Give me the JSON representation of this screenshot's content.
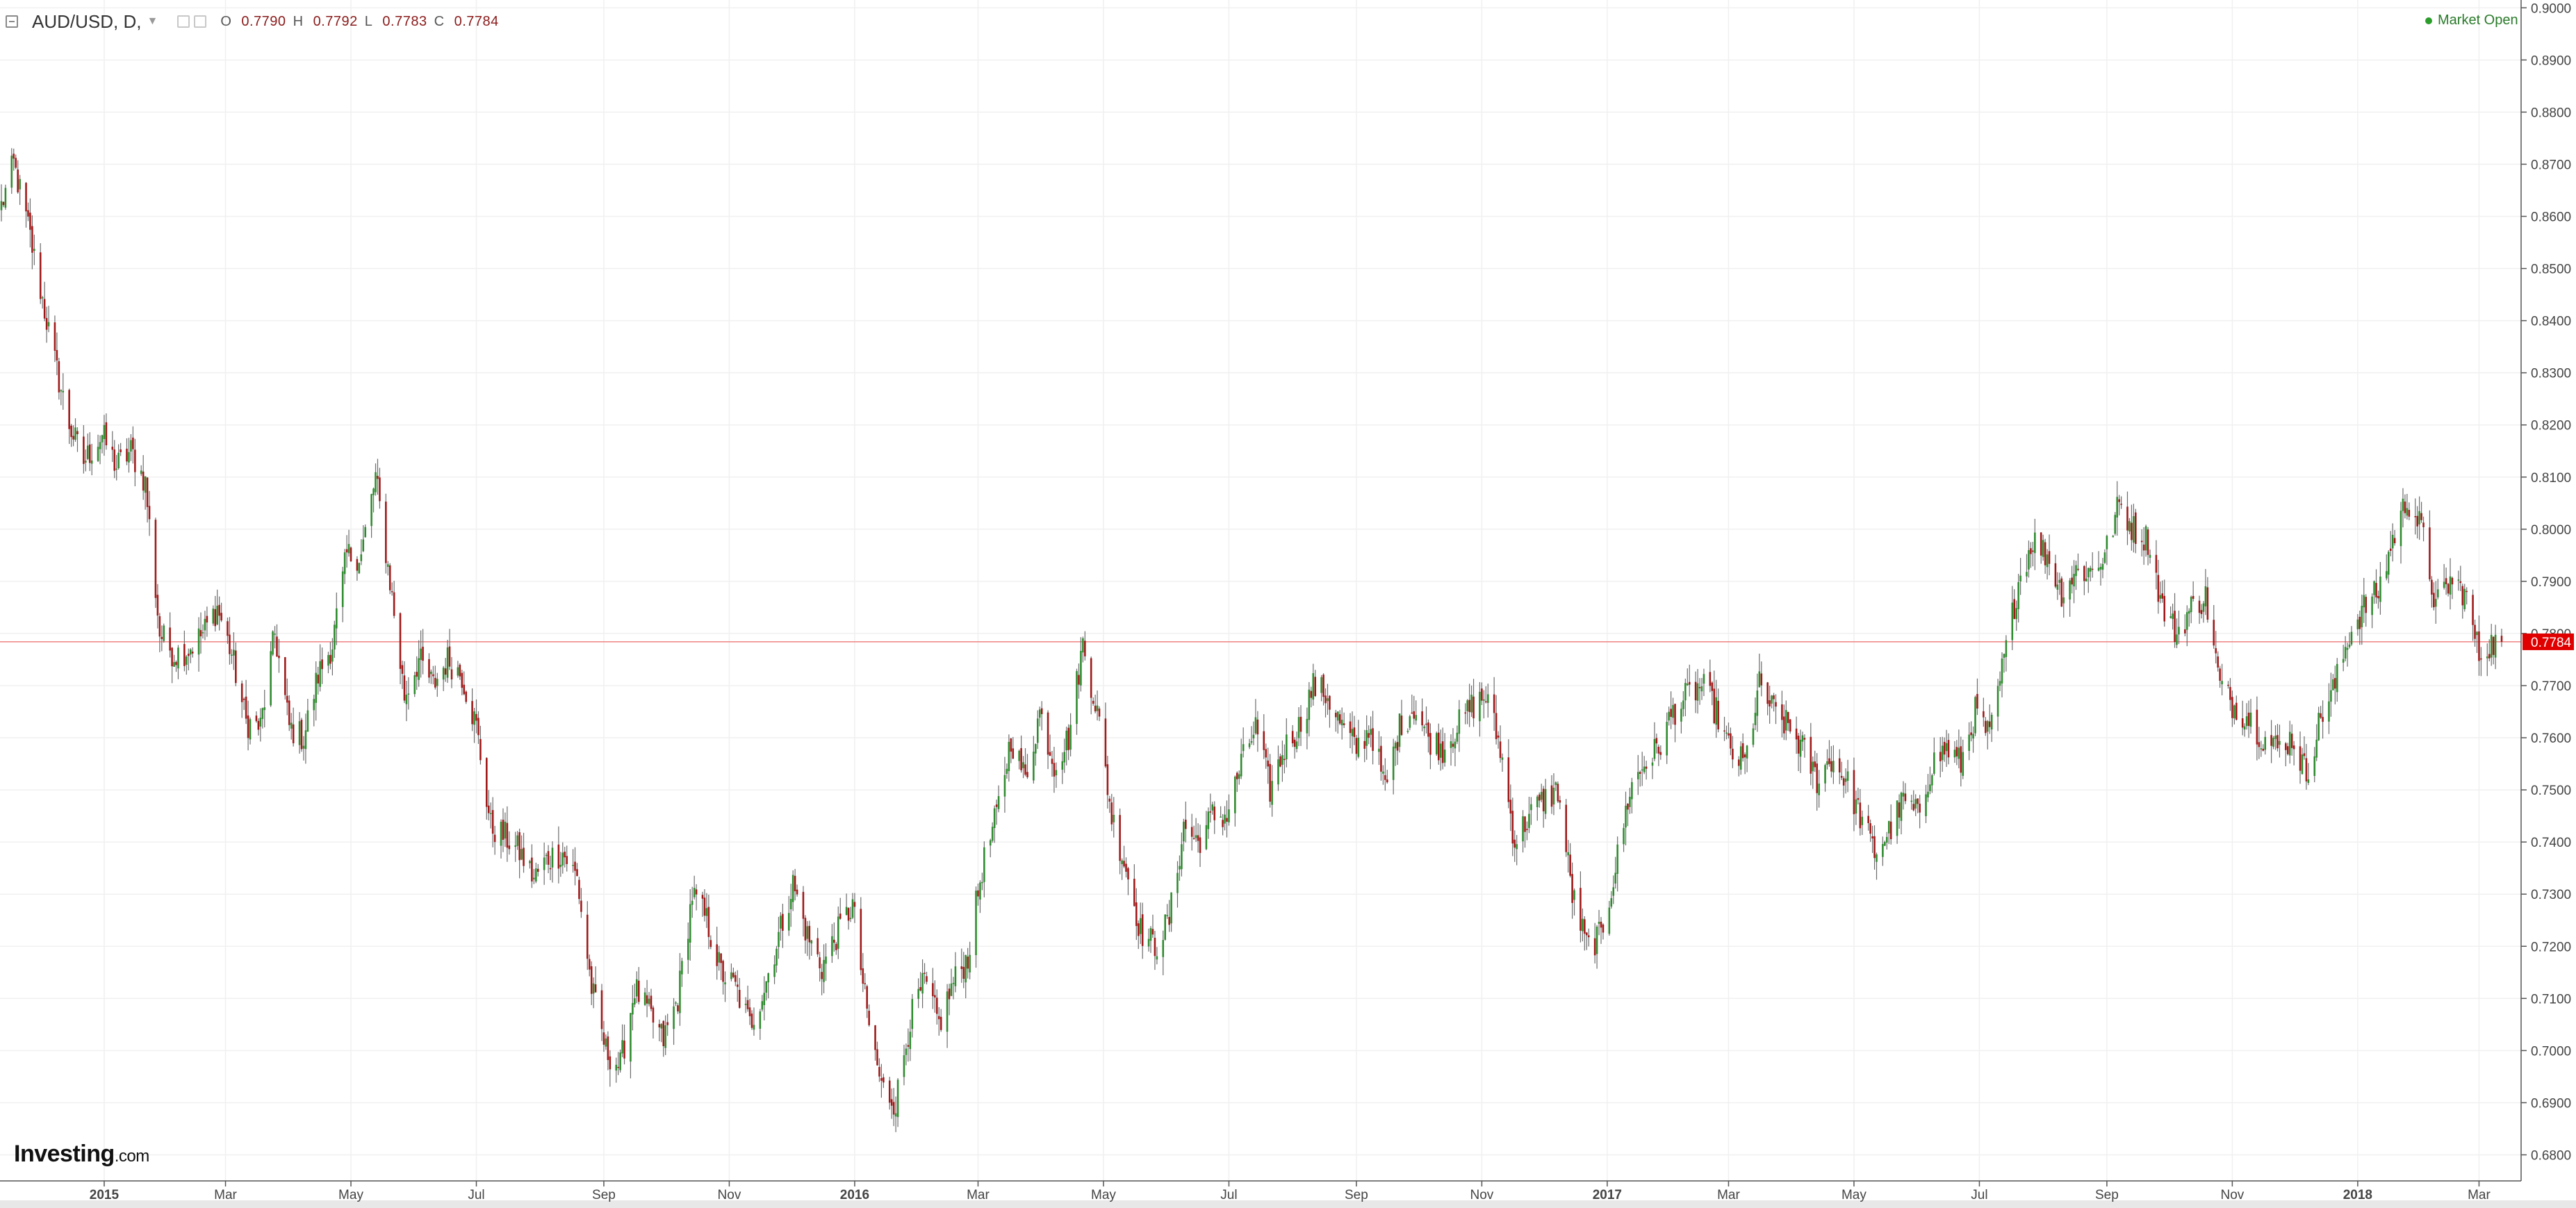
{
  "header": {
    "symbol": "AUD/USD, D,",
    "ohlc": {
      "o_label": "O",
      "o_value": "0.7790",
      "h_label": "H",
      "h_value": "0.7792",
      "l_label": "L",
      "l_value": "0.7783",
      "c_label": "C",
      "c_value": "0.7784"
    },
    "market_status": "Market Open"
  },
  "logo": {
    "brand": "Investing",
    "suffix": ".com"
  },
  "chart_data": {
    "type": "candlestick",
    "title": "AUD/USD",
    "timeframe": "D",
    "ylim": [
      0.675,
      0.9015
    ],
    "y_ticks": [
      "0.9000",
      "0.8900",
      "0.8800",
      "0.8700",
      "0.8600",
      "0.8500",
      "0.8400",
      "0.8300",
      "0.8200",
      "0.8100",
      "0.8000",
      "0.7900",
      "0.7800",
      "0.7700",
      "0.7600",
      "0.7500",
      "0.7400",
      "0.7300",
      "0.7200",
      "0.7100",
      "0.7000",
      "0.6900",
      "0.6800"
    ],
    "x_ticks": [
      {
        "label": "2015",
        "date": "2015-01-01",
        "bold": true
      },
      {
        "label": "Mar",
        "date": "2015-03-01"
      },
      {
        "label": "May",
        "date": "2015-05-01"
      },
      {
        "label": "Jul",
        "date": "2015-07-01"
      },
      {
        "label": "Sep",
        "date": "2015-09-01"
      },
      {
        "label": "Nov",
        "date": "2015-11-01"
      },
      {
        "label": "2016",
        "date": "2016-01-01",
        "bold": true
      },
      {
        "label": "Mar",
        "date": "2016-03-01"
      },
      {
        "label": "May",
        "date": "2016-05-01"
      },
      {
        "label": "Jul",
        "date": "2016-07-01"
      },
      {
        "label": "Sep",
        "date": "2016-09-01"
      },
      {
        "label": "Nov",
        "date": "2016-11-01"
      },
      {
        "label": "2017",
        "date": "2017-01-01",
        "bold": true
      },
      {
        "label": "Mar",
        "date": "2017-03-01"
      },
      {
        "label": "May",
        "date": "2017-05-01"
      },
      {
        "label": "Jul",
        "date": "2017-07-01"
      },
      {
        "label": "Sep",
        "date": "2017-09-01"
      },
      {
        "label": "Nov",
        "date": "2017-11-01"
      },
      {
        "label": "2018",
        "date": "2018-01-01",
        "bold": true
      },
      {
        "label": "Mar",
        "date": "2018-03-01"
      }
    ],
    "current_price": "0.7784",
    "current_price_color": "#e00000",
    "up_color": "#2e8b2e",
    "down_color": "#a01818",
    "series": [
      {
        "name": "AUD/USD",
        "close": [
          [
            "2014-11-12",
            0.862
          ],
          [
            "2014-11-18",
            0.87
          ],
          [
            "2014-11-25",
            0.858
          ],
          [
            "2014-12-01",
            0.846
          ],
          [
            "2014-12-08",
            0.832
          ],
          [
            "2014-12-15",
            0.82
          ],
          [
            "2014-12-22",
            0.813
          ],
          [
            "2014-12-31",
            0.818
          ],
          [
            "2015-01-07",
            0.812
          ],
          [
            "2015-01-14",
            0.815
          ],
          [
            "2015-01-21",
            0.809
          ],
          [
            "2015-01-28",
            0.78
          ],
          [
            "2015-02-04",
            0.776
          ],
          [
            "2015-02-11",
            0.777
          ],
          [
            "2015-02-18",
            0.78
          ],
          [
            "2015-02-25",
            0.785
          ],
          [
            "2015-03-04",
            0.776
          ],
          [
            "2015-03-11",
            0.763
          ],
          [
            "2015-03-18",
            0.762
          ],
          [
            "2015-03-25",
            0.78
          ],
          [
            "2015-04-01",
            0.762
          ],
          [
            "2015-04-08",
            0.76
          ],
          [
            "2015-04-15",
            0.772
          ],
          [
            "2015-04-22",
            0.778
          ],
          [
            "2015-04-29",
            0.795
          ],
          [
            "2015-05-06",
            0.795
          ],
          [
            "2015-05-13",
            0.81
          ],
          [
            "2015-05-20",
            0.79
          ],
          [
            "2015-05-27",
            0.768
          ],
          [
            "2015-06-03",
            0.775
          ],
          [
            "2015-06-10",
            0.77
          ],
          [
            "2015-06-17",
            0.775
          ],
          [
            "2015-06-24",
            0.772
          ],
          [
            "2015-07-01",
            0.762
          ],
          [
            "2015-07-08",
            0.743
          ],
          [
            "2015-07-15",
            0.741
          ],
          [
            "2015-07-22",
            0.738
          ],
          [
            "2015-07-29",
            0.733
          ],
          [
            "2015-08-05",
            0.737
          ],
          [
            "2015-08-12",
            0.738
          ],
          [
            "2015-08-19",
            0.733
          ],
          [
            "2015-08-26",
            0.712
          ],
          [
            "2015-09-02",
            0.7
          ],
          [
            "2015-09-09",
            0.697
          ],
          [
            "2015-09-16",
            0.712
          ],
          [
            "2015-09-23",
            0.707
          ],
          [
            "2015-09-30",
            0.702
          ],
          [
            "2015-10-07",
            0.71
          ],
          [
            "2015-10-14",
            0.73
          ],
          [
            "2015-10-21",
            0.725
          ],
          [
            "2015-10-28",
            0.715
          ],
          [
            "2015-11-04",
            0.712
          ],
          [
            "2015-11-11",
            0.705
          ],
          [
            "2015-11-18",
            0.712
          ],
          [
            "2015-11-25",
            0.722
          ],
          [
            "2015-12-02",
            0.732
          ],
          [
            "2015-12-09",
            0.722
          ],
          [
            "2015-12-16",
            0.716
          ],
          [
            "2015-12-23",
            0.722
          ],
          [
            "2015-12-31",
            0.728
          ],
          [
            "2016-01-07",
            0.707
          ],
          [
            "2016-01-14",
            0.693
          ],
          [
            "2016-01-21",
            0.69
          ],
          [
            "2016-01-28",
            0.706
          ],
          [
            "2016-02-04",
            0.713
          ],
          [
            "2016-02-11",
            0.705
          ],
          [
            "2016-02-18",
            0.713
          ],
          [
            "2016-02-25",
            0.718
          ],
          [
            "2016-03-03",
            0.735
          ],
          [
            "2016-03-10",
            0.745
          ],
          [
            "2016-03-17",
            0.76
          ],
          [
            "2016-03-24",
            0.752
          ],
          [
            "2016-03-31",
            0.765
          ],
          [
            "2016-04-07",
            0.755
          ],
          [
            "2016-04-14",
            0.76
          ],
          [
            "2016-04-21",
            0.778
          ],
          [
            "2016-04-28",
            0.765
          ],
          [
            "2016-05-05",
            0.745
          ],
          [
            "2016-05-12",
            0.735
          ],
          [
            "2016-05-19",
            0.723
          ],
          [
            "2016-05-26",
            0.72
          ],
          [
            "2016-06-02",
            0.725
          ],
          [
            "2016-06-09",
            0.743
          ],
          [
            "2016-06-16",
            0.74
          ],
          [
            "2016-06-23",
            0.745
          ],
          [
            "2016-06-30",
            0.745
          ],
          [
            "2016-07-07",
            0.755
          ],
          [
            "2016-07-14",
            0.762
          ],
          [
            "2016-07-21",
            0.75
          ],
          [
            "2016-07-28",
            0.758
          ],
          [
            "2016-08-04",
            0.762
          ],
          [
            "2016-08-11",
            0.77
          ],
          [
            "2016-08-18",
            0.768
          ],
          [
            "2016-08-25",
            0.762
          ],
          [
            "2016-09-01",
            0.758
          ],
          [
            "2016-09-08",
            0.762
          ],
          [
            "2016-09-15",
            0.75
          ],
          [
            "2016-09-22",
            0.762
          ],
          [
            "2016-09-29",
            0.766
          ],
          [
            "2016-10-06",
            0.76
          ],
          [
            "2016-10-13",
            0.758
          ],
          [
            "2016-10-20",
            0.762
          ],
          [
            "2016-10-27",
            0.766
          ],
          [
            "2016-11-03",
            0.768
          ],
          [
            "2016-11-10",
            0.758
          ],
          [
            "2016-11-17",
            0.74
          ],
          [
            "2016-11-24",
            0.745
          ],
          [
            "2016-12-01",
            0.748
          ],
          [
            "2016-12-08",
            0.75
          ],
          [
            "2016-12-15",
            0.73
          ],
          [
            "2016-12-22",
            0.72
          ],
          [
            "2016-12-29",
            0.722
          ],
          [
            "2017-01-05",
            0.735
          ],
          [
            "2017-01-12",
            0.75
          ],
          [
            "2017-01-19",
            0.755
          ],
          [
            "2017-01-26",
            0.758
          ],
          [
            "2017-02-02",
            0.765
          ],
          [
            "2017-02-09",
            0.768
          ],
          [
            "2017-02-16",
            0.77
          ],
          [
            "2017-02-23",
            0.765
          ],
          [
            "2017-03-02",
            0.757
          ],
          [
            "2017-03-09",
            0.755
          ],
          [
            "2017-03-16",
            0.77
          ],
          [
            "2017-03-23",
            0.765
          ],
          [
            "2017-03-30",
            0.762
          ],
          [
            "2017-04-06",
            0.758
          ],
          [
            "2017-04-13",
            0.752
          ],
          [
            "2017-04-20",
            0.756
          ],
          [
            "2017-04-27",
            0.752
          ],
          [
            "2017-05-04",
            0.745
          ],
          [
            "2017-05-11",
            0.738
          ],
          [
            "2017-05-18",
            0.742
          ],
          [
            "2017-05-25",
            0.748
          ],
          [
            "2017-06-01",
            0.745
          ],
          [
            "2017-06-08",
            0.755
          ],
          [
            "2017-06-15",
            0.758
          ],
          [
            "2017-06-22",
            0.755
          ],
          [
            "2017-06-29",
            0.765
          ],
          [
            "2017-07-06",
            0.76
          ],
          [
            "2017-07-13",
            0.775
          ],
          [
            "2017-07-20",
            0.79
          ],
          [
            "2017-07-27",
            0.798
          ],
          [
            "2017-08-03",
            0.795
          ],
          [
            "2017-08-10",
            0.788
          ],
          [
            "2017-08-17",
            0.792
          ],
          [
            "2017-08-24",
            0.792
          ],
          [
            "2017-08-31",
            0.795
          ],
          [
            "2017-09-07",
            0.805
          ],
          [
            "2017-09-14",
            0.8
          ],
          [
            "2017-09-21",
            0.798
          ],
          [
            "2017-09-28",
            0.785
          ],
          [
            "2017-10-05",
            0.78
          ],
          [
            "2017-10-12",
            0.785
          ],
          [
            "2017-10-19",
            0.787
          ],
          [
            "2017-10-26",
            0.77
          ],
          [
            "2017-11-02",
            0.766
          ],
          [
            "2017-11-09",
            0.764
          ],
          [
            "2017-11-16",
            0.76
          ],
          [
            "2017-11-23",
            0.758
          ],
          [
            "2017-11-30",
            0.76
          ],
          [
            "2017-12-07",
            0.753
          ],
          [
            "2017-12-14",
            0.764
          ],
          [
            "2017-12-21",
            0.77
          ],
          [
            "2017-12-28",
            0.78
          ],
          [
            "2018-01-04",
            0.785
          ],
          [
            "2018-01-11",
            0.788
          ],
          [
            "2018-01-18",
            0.798
          ],
          [
            "2018-01-25",
            0.806
          ],
          [
            "2018-02-01",
            0.8
          ],
          [
            "2018-02-08",
            0.785
          ],
          [
            "2018-02-15",
            0.79
          ],
          [
            "2018-02-22",
            0.788
          ],
          [
            "2018-03-01",
            0.776
          ],
          [
            "2018-03-06",
            0.778
          ],
          [
            "2018-03-12",
            0.7784
          ]
        ]
      }
    ],
    "grid": true,
    "y_axis_side": "right"
  }
}
